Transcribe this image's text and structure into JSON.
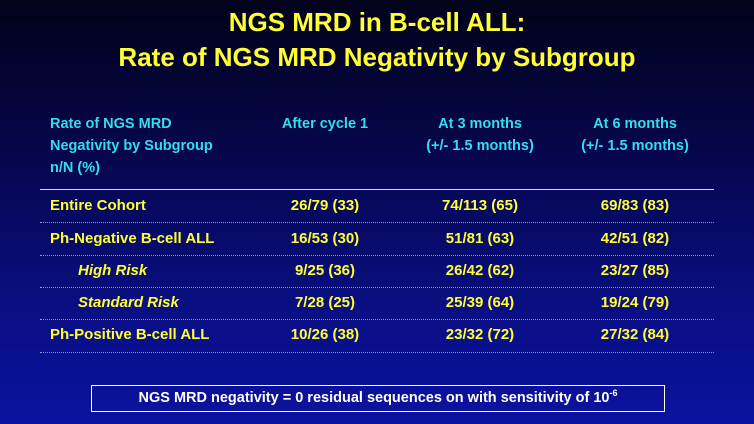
{
  "title": {
    "line1": "NGS MRD in B-cell ALL:",
    "line2": "Rate of NGS MRD Negativity by Subgroup"
  },
  "table": {
    "headers": {
      "label": [
        "Rate of NGS MRD",
        "Negativity by Subgroup",
        "n/N (%)"
      ],
      "after_cycle_1": [
        "After cycle 1"
      ],
      "month_3": [
        "At 3 months",
        "(+/- 1.5 months)"
      ],
      "month_6": [
        "At 6 months",
        "(+/- 1.5 months)"
      ]
    },
    "rows": [
      {
        "label": "Entire Cohort",
        "after_cycle_1": "26/79 (33)",
        "month_3": "74/113 (65)",
        "month_6": "69/83 (83)"
      },
      {
        "label": "Ph-Negative B-cell ALL",
        "after_cycle_1": "16/53 (30)",
        "month_3": "51/81 (63)",
        "month_6": "42/51 (82)"
      },
      {
        "label": "High Risk",
        "after_cycle_1": "9/25 (36)",
        "month_3": "26/42 (62)",
        "month_6": "23/27 (85)"
      },
      {
        "label": "Standard Risk",
        "after_cycle_1": "7/28 (25)",
        "month_3": "25/39 (64)",
        "month_6": "19/24 (79)"
      },
      {
        "label": "Ph-Positive B-cell ALL",
        "after_cycle_1": "10/26 (38)",
        "month_3": "23/32 (72)",
        "month_6": "27/32 (84)"
      }
    ]
  },
  "footnote": {
    "text": "NGS MRD negativity = 0 residual sequences on with sensitivity of 10",
    "exponent": "-6"
  },
  "colors": {
    "title": "#ffff33",
    "header": "#33ddee",
    "body_text": "#ffff33",
    "note_text": "#ffffff",
    "background_top": "#02021a",
    "background_bottom": "#0b12a0"
  }
}
